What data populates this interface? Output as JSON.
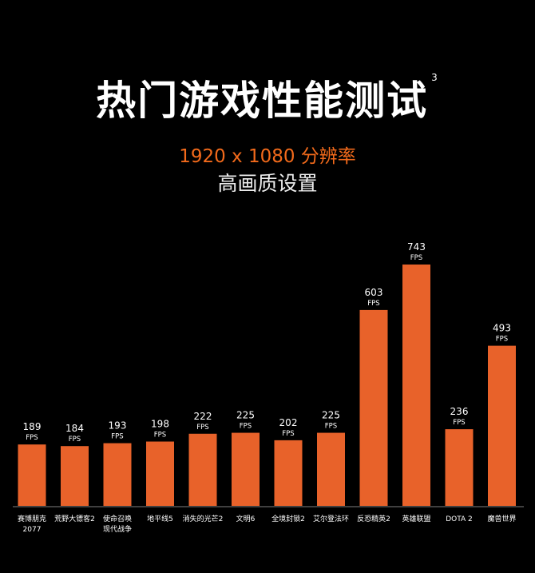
{
  "title": "热门游戏性能测试",
  "footnote": "3",
  "subtitle_resolution": "1920 x 1080 分辨率",
  "subtitle_quality": "高画质设置",
  "colors": {
    "bar": "#e8622a",
    "background": "#000000",
    "accent": "#f26a1b"
  },
  "chart_data": {
    "type": "bar",
    "categories": [
      [
        "赛博朋克",
        "2077"
      ],
      [
        "荒野大镖客2"
      ],
      [
        "使命召唤",
        "现代战争"
      ],
      [
        "地平线5"
      ],
      [
        "消失的光芒2"
      ],
      [
        "文明6"
      ],
      [
        "全境封锁2"
      ],
      [
        "艾尔登法环"
      ],
      [
        "反恐精英2"
      ],
      [
        "英雄联盟"
      ],
      [
        "DOTA 2"
      ],
      [
        "魔兽世界"
      ]
    ],
    "values": [
      189,
      184,
      193,
      198,
      222,
      225,
      202,
      225,
      603,
      743,
      236,
      493
    ],
    "unit": "FPS",
    "grid": false
  }
}
